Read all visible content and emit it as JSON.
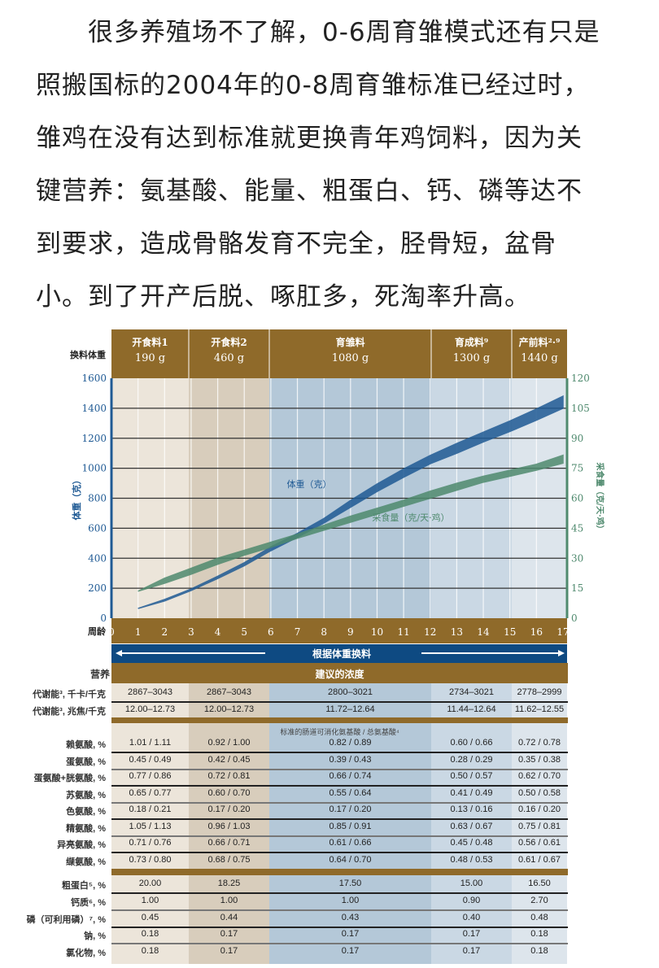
{
  "paragraph": [
    "很多养殖场不了解，0-6周育雏模式还有只是",
    "照搬国标的2004年的0-8周育雏标准已经过时，",
    "雏鸡在没有达到标准就更换青年鸡饲料，因为关",
    "键营养：氨基酸、能量、粗蛋白、钙、磷等达不",
    "到要求，造成骨骼发育不完全，胫骨短，盆骨",
    "小。到了开产后脱、啄肛多，死淘率升高。"
  ],
  "feed_header": {
    "row_label": "换料体重",
    "columns": [
      {
        "name": "开食料1",
        "weight": "190 g"
      },
      {
        "name": "开食料2",
        "weight": "460 g"
      },
      {
        "name": "育雏料",
        "weight": "1080 g"
      },
      {
        "name": "育成料⁹",
        "weight": "1300 g"
      },
      {
        "name": "产前料²·⁹",
        "weight": "1440 g"
      }
    ]
  },
  "chart_data": {
    "type": "area",
    "xlabel": "周龄",
    "ylabel": "体重（克）",
    "y2label": "采食量（克/天·鸡）",
    "xlim": [
      0,
      17
    ],
    "ylim": [
      0,
      1600
    ],
    "y2lim": [
      0,
      120
    ],
    "x_ticks": [
      0,
      1,
      2,
      3,
      4,
      5,
      6,
      7,
      8,
      9,
      10,
      11,
      12,
      13,
      14,
      15,
      16,
      17
    ],
    "y_ticks": [
      0,
      200,
      400,
      600,
      800,
      1000,
      1200,
      1400,
      1600
    ],
    "y2_ticks": [
      0,
      15,
      30,
      45,
      60,
      75,
      90,
      105,
      120
    ],
    "grid": true,
    "x": [
      1,
      2,
      3,
      4,
      5,
      6,
      7,
      8,
      9,
      10,
      11,
      12,
      13,
      14,
      15,
      16,
      17
    ],
    "series": [
      {
        "name": "体重（克）",
        "axis": "left",
        "color": "#1f5a94",
        "low": [
          65,
          115,
          185,
          265,
          350,
          450,
          540,
          635,
          740,
          845,
          940,
          1030,
          1100,
          1175,
          1245,
          1320,
          1400
        ],
        "high": [
          65,
          125,
          195,
          280,
          370,
          475,
          565,
          665,
          785,
          895,
          995,
          1085,
          1165,
          1240,
          1315,
          1395,
          1480
        ]
      },
      {
        "name": "采食量（克/天·鸡）",
        "axis": "right",
        "color": "#4f8a6e",
        "low": [
          13.5,
          17.5,
          22,
          27,
          31.5,
          35.5,
          40,
          44,
          48,
          52,
          56,
          60,
          64,
          68,
          71,
          74,
          77.5
        ],
        "high": [
          13.5,
          20,
          25,
          30,
          34,
          38,
          42,
          46.5,
          51,
          55,
          59,
          63.5,
          67.5,
          71,
          74,
          77,
          81.5
        ]
      }
    ],
    "band_label": "根据体重换料"
  },
  "colors": {
    "brown": "#8f6a2a",
    "blue_band": "#0e4a82",
    "weight": "#1f5a94",
    "intake": "#4f8a6e"
  },
  "table": {
    "label_header": "营养",
    "title": "建议的浓度",
    "sub_header": "标准的肠道可消化氨基酸 / 总氨基酸⁴",
    "energy_rows": [
      {
        "label": "代谢能³, 千卡/千克",
        "values": [
          "2867–3043",
          "2867–3043",
          "2800–3021",
          "2734–3021",
          "2778–2999"
        ]
      },
      {
        "label": "代谢能³, 兆焦/千克",
        "values": [
          "12.00–12.73",
          "12.00–12.73",
          "11.72–12.64",
          "11.44–12.64",
          "11.62–12.55"
        ]
      }
    ],
    "amino_rows": [
      {
        "label": "赖氨酸, %",
        "values": [
          "1.01 / 1.11",
          "0.92 / 1.00",
          "0.82 / 0.89",
          "0.60 / 0.66",
          "0.72 / 0.78"
        ]
      },
      {
        "label": "蛋氨酸, %",
        "values": [
          "0.45 / 0.49",
          "0.42 / 0.45",
          "0.39 / 0.43",
          "0.28 / 0.29",
          "0.35 / 0.38"
        ]
      },
      {
        "label": "蛋氨酸+胱氨酸, %",
        "values": [
          "0.77 / 0.86",
          "0.72 / 0.81",
          "0.66 / 0.74",
          "0.50 / 0.57",
          "0.62 / 0.70"
        ]
      },
      {
        "label": "苏氨酸, %",
        "values": [
          "0.65 / 0.77",
          "0.60 / 0.70",
          "0.55 / 0.64",
          "0.41 / 0.49",
          "0.50 / 0.58"
        ]
      },
      {
        "label": "色氨酸, %",
        "values": [
          "0.18 / 0.21",
          "0.17 / 0.20",
          "0.17 / 0.20",
          "0.13 / 0.16",
          "0.16 / 0.20"
        ]
      },
      {
        "label": "精氨酸, %",
        "values": [
          "1.05 / 1.13",
          "0.96 / 1.03",
          "0.85 / 0.91",
          "0.63 / 0.67",
          "0.75 / 0.81"
        ]
      },
      {
        "label": "异亮氨酸, %",
        "values": [
          "0.71 / 0.76",
          "0.66 / 0.71",
          "0.61 / 0.66",
          "0.45 / 0.48",
          "0.56 / 0.61"
        ]
      },
      {
        "label": "缬氨酸, %",
        "values": [
          "0.73 / 0.80",
          "0.68 / 0.75",
          "0.64 / 0.70",
          "0.48 / 0.53",
          "0.61 / 0.67"
        ]
      }
    ],
    "mineral_rows": [
      {
        "label": "粗蛋白⁵, %",
        "values": [
          "20.00",
          "18.25",
          "17.50",
          "15.00",
          "16.50"
        ]
      },
      {
        "label": "钙质⁶, %",
        "values": [
          "1.00",
          "1.00",
          "1.00",
          "0.90",
          "2.70"
        ]
      },
      {
        "label": "磷（可利用磷）⁷, %",
        "values": [
          "0.45",
          "0.44",
          "0.43",
          "0.40",
          "0.48"
        ]
      },
      {
        "label": "钠, %",
        "values": [
          "0.18",
          "0.17",
          "0.17",
          "0.17",
          "0.18"
        ]
      },
      {
        "label": "氯化物, %",
        "values": [
          "0.18",
          "0.17",
          "0.17",
          "0.17",
          "0.18"
        ]
      }
    ]
  }
}
